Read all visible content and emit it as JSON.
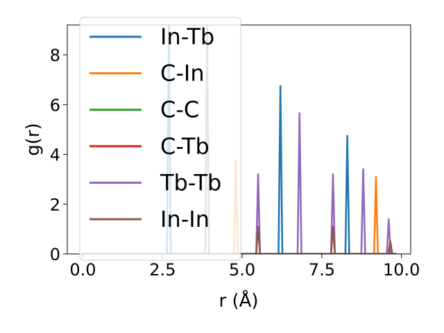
{
  "chart_data": {
    "type": "line",
    "xlabel": "r (Å)",
    "ylabel": "g(r)",
    "xlim": [
      -0.49,
      10.29
    ],
    "ylim": [
      0,
      9.2
    ],
    "xticks": [
      0.0,
      2.5,
      5.0,
      7.5,
      10.0
    ],
    "xtick_labels": [
      "0.0",
      "2.5",
      "5.0",
      "7.5",
      "10.0"
    ],
    "yticks": [
      0,
      2,
      4,
      6,
      8
    ],
    "ytick_labels": [
      "0",
      "2",
      "4",
      "6",
      "8"
    ],
    "grid": false,
    "legend_position": "upper-left",
    "series": [
      {
        "name": "In-Tb",
        "color": "#1f77b4",
        "peaks": [
          [
            2.7,
            9.2
          ],
          [
            6.2,
            6.75
          ],
          [
            8.3,
            4.75
          ]
        ]
      },
      {
        "name": "C-In",
        "color": "#ff7f0e",
        "peaks": [
          [
            4.8,
            3.75
          ],
          [
            9.2,
            3.1
          ],
          [
            9.65,
            0.5
          ]
        ]
      },
      {
        "name": "C-C",
        "color": "#2ca02c",
        "peaks": []
      },
      {
        "name": "C-Tb",
        "color": "#d62728",
        "peaks": []
      },
      {
        "name": "Tb-Tb",
        "color": "#9467bd",
        "peaks": [
          [
            3.9,
            9.2
          ],
          [
            5.5,
            3.2
          ],
          [
            6.8,
            5.65
          ],
          [
            7.85,
            3.2
          ],
          [
            8.8,
            3.4
          ],
          [
            9.6,
            1.4
          ]
        ]
      },
      {
        "name": "In-In",
        "color": "#8c564b",
        "peaks": [
          [
            5.5,
            1.1
          ],
          [
            7.85,
            1.1
          ],
          [
            9.65,
            0.5
          ]
        ]
      }
    ]
  }
}
